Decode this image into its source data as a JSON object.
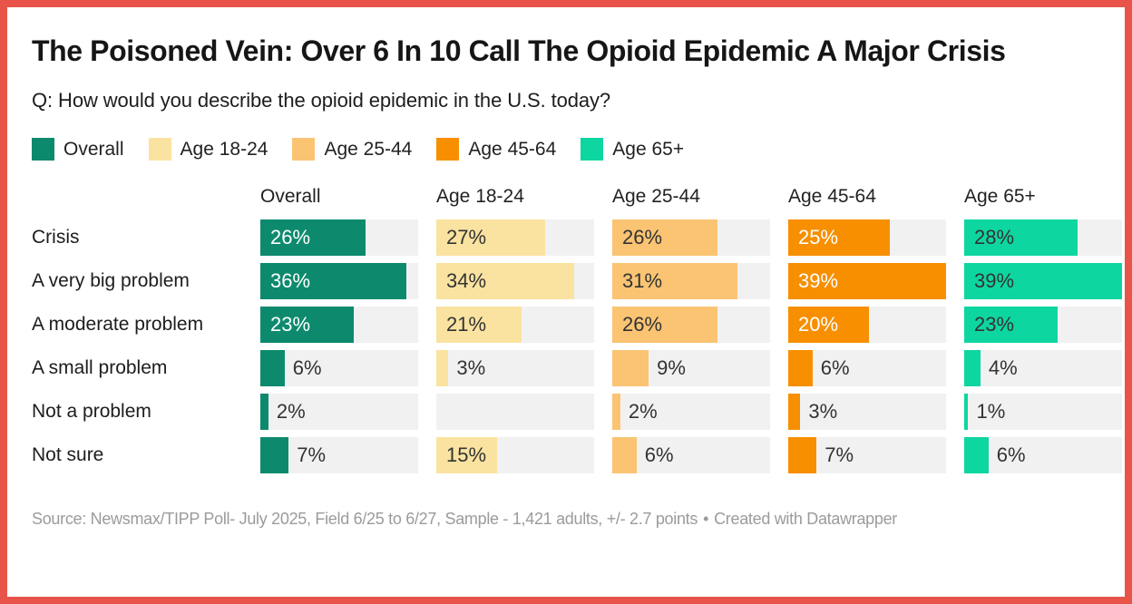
{
  "frame": {
    "border_color": "#e8544a"
  },
  "chart_data": {
    "type": "bar",
    "title": "The Poisoned Vein: Over 6 In 10 Call The Opioid Epidemic A Major Crisis",
    "subtitle": "Q: How would you describe the opioid epidemic in the U.S. today?",
    "unit": "%",
    "axis_max": 39,
    "grid": false,
    "legend_position": "top",
    "track_color": "#f1f1f2",
    "value_label_dark_color": "#333333",
    "value_label_light_color": "#ffffff",
    "inside_label_threshold": 15,
    "categories": [
      "Crisis",
      "A very big problem",
      "A moderate problem",
      "A small problem",
      "Not a problem",
      "Not sure"
    ],
    "series": [
      {
        "name": "Overall",
        "color": "#0d8a6e",
        "label_style": "light",
        "values": [
          26,
          36,
          23,
          6,
          2,
          7
        ]
      },
      {
        "name": "Age 18-24",
        "color": "#fae3a0",
        "label_style": "dark",
        "values": [
          27,
          34,
          21,
          3,
          null,
          15
        ]
      },
      {
        "name": "Age 25-44",
        "color": "#fac473",
        "label_style": "dark",
        "values": [
          26,
          31,
          26,
          9,
          2,
          6
        ]
      },
      {
        "name": "Age 45-64",
        "color": "#f78f00",
        "label_style": "light",
        "values": [
          25,
          39,
          20,
          6,
          3,
          7
        ]
      },
      {
        "name": "Age 65+",
        "color": "#0ed6a0",
        "label_style": "dark",
        "values": [
          28,
          39,
          23,
          4,
          1,
          6
        ]
      }
    ]
  },
  "footer": {
    "source": "Source: Newsmax/TIPP Poll- July 2025, Field 6/25 to 6/27, Sample - 1,421 adults, +/- 2.7 points",
    "separator": "•",
    "attribution": "Created with Datawrapper"
  }
}
